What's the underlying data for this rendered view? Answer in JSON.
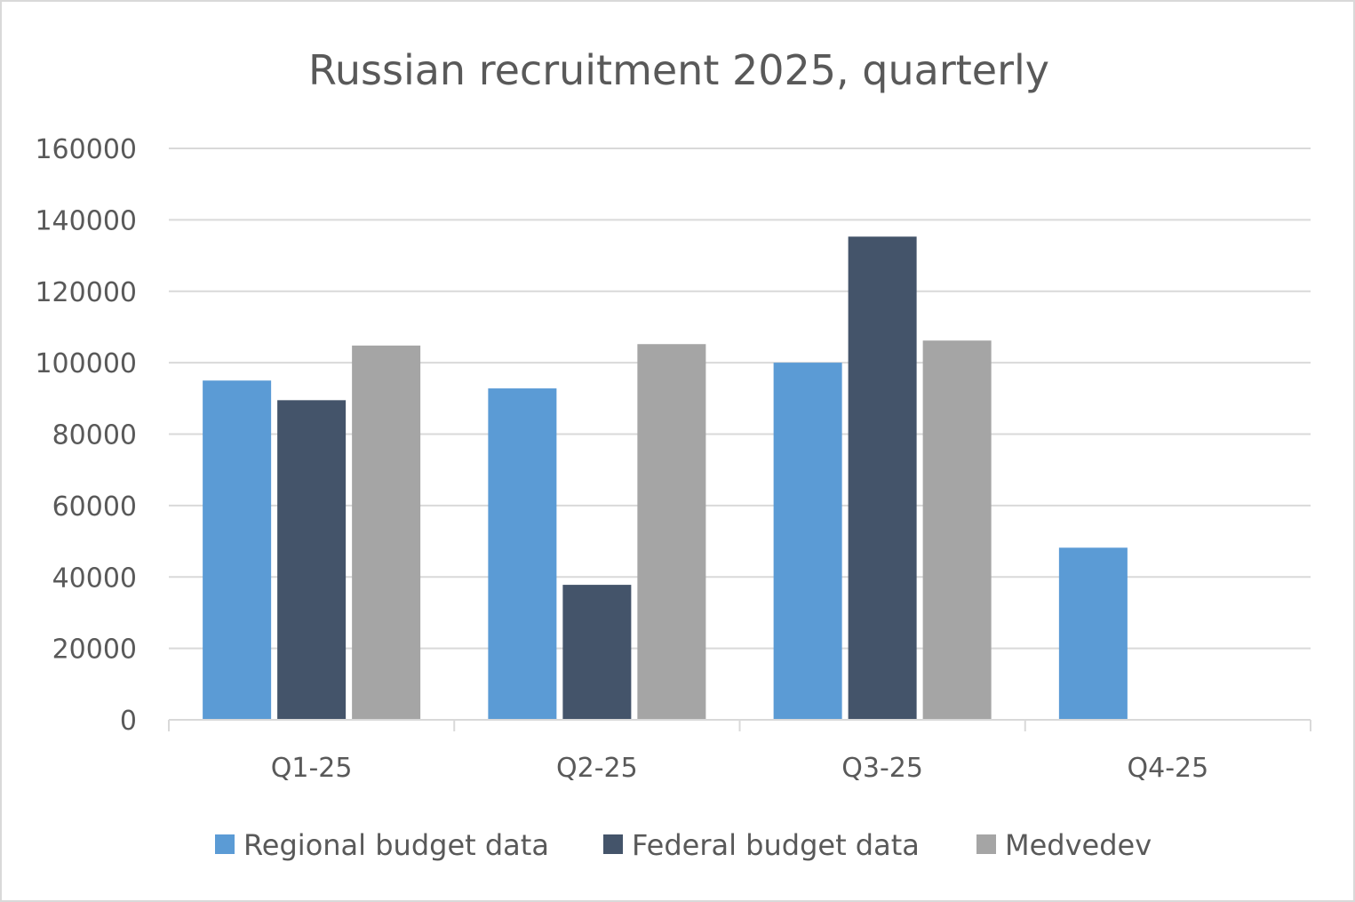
{
  "chart_data": {
    "type": "bar",
    "title": "Russian recruitment 2025, quarterly",
    "xlabel": "",
    "ylabel": "",
    "categories": [
      "Q1-25",
      "Q2-25",
      "Q3-25",
      "Q4-25"
    ],
    "series": [
      {
        "name": "Regional budget data",
        "color": "#5b9bd5",
        "values": [
          95000,
          92800,
          100000,
          48200
        ]
      },
      {
        "name": "Federal budget data",
        "color": "#44546a",
        "values": [
          89500,
          37800,
          135300,
          null
        ]
      },
      {
        "name": "Medvedev",
        "color": "#a5a5a5",
        "values": [
          104800,
          105200,
          106200,
          null
        ]
      }
    ],
    "ylim": [
      0,
      160000
    ],
    "yticks": [
      "0",
      "20000",
      "40000",
      "60000",
      "80000",
      "100000",
      "120000",
      "140000",
      "160000"
    ],
    "grid": true,
    "legend_position": "bottom"
  }
}
